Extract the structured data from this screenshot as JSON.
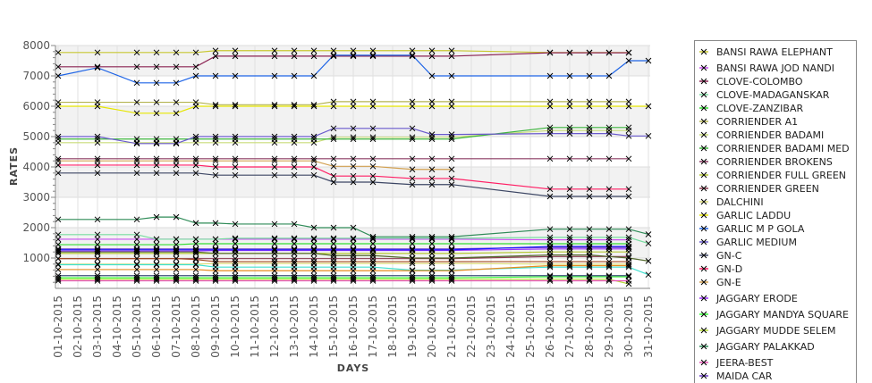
{
  "chart_data": {
    "type": "line",
    "title": "",
    "xlabel": "DAYS",
    "ylabel": "RATES",
    "ylim": [
      0,
      8000
    ],
    "yticks": [
      "1000",
      "2000",
      "3000",
      "4000",
      "5000",
      "6000",
      "7000",
      "8000"
    ],
    "xtick_labels": [
      "01-10-2015",
      "02-10-2015",
      "03-10-2015",
      "04-10-2015",
      "05-10-2015",
      "06-10-2015",
      "07-10-2015",
      "08-10-2015",
      "09-10-2015",
      "10-10-2015",
      "11-10-2015",
      "12-10-2015",
      "13-10-2015",
      "14-10-2015",
      "15-10-2015",
      "16-10-2015",
      "17-10-2015",
      "18-10-2015",
      "19-10-2015",
      "20-10-2015",
      "21-10-2015",
      "22-10-2015",
      "23-10-2015",
      "24-10-2015",
      "25-10-2015",
      "26-10-2015",
      "27-10-2015",
      "28-10-2015",
      "29-10-2015",
      "30-10-2015",
      "31-10-2015"
    ],
    "x": [
      "01-10-2015",
      "03-10-2015",
      "05-10-2015",
      "06-10-2015",
      "07-10-2015",
      "08-10-2015",
      "09-10-2015",
      "10-10-2015",
      "12-10-2015",
      "13-10-2015",
      "14-10-2015",
      "15-10-2015",
      "16-10-2015",
      "17-10-2015",
      "19-10-2015",
      "20-10-2015",
      "21-10-2015",
      "26-10-2015",
      "27-10-2015",
      "28-10-2015",
      "29-10-2015",
      "30-10-2015",
      "31-10-2015"
    ],
    "grid": true,
    "legend_position": "right",
    "series": [
      {
        "name": "BANSI RAWA ELEPHANT",
        "color": "#c8c832",
        "values": [
          7770,
          7770,
          7770,
          7770,
          7770,
          7770,
          7830,
          7830,
          7830,
          7830,
          7830,
          7830,
          7830,
          7830,
          7830,
          7830,
          7830,
          7770,
          7770,
          7770,
          7770,
          7770,
          null
        ]
      },
      {
        "name": "BANSI RAWA JOD NANDI",
        "color": "#c850f0",
        "values": [
          1620,
          1620,
          1620,
          1620,
          1620,
          1620,
          1620,
          1620,
          1620,
          1620,
          1620,
          1620,
          1620,
          1620,
          1620,
          1620,
          1620,
          1600,
          1600,
          1600,
          1600,
          1600,
          null
        ]
      },
      {
        "name": "CLOVE-COLOMBO",
        "color": "#8b2252",
        "values": [
          7300,
          7300,
          7300,
          7300,
          7300,
          7300,
          7650,
          7650,
          7650,
          7650,
          7650,
          7650,
          7650,
          7650,
          7650,
          7650,
          7650,
          7760,
          7760,
          7760,
          7760,
          7760,
          null
        ]
      },
      {
        "name": "CLOVE-MADAGANSKAR",
        "color": "#78dca0",
        "values": [
          1770,
          1770,
          1770,
          1620,
          1620,
          1620,
          1620,
          1650,
          1650,
          1650,
          1650,
          1650,
          1650,
          1650,
          1650,
          1650,
          1650,
          1680,
          1680,
          1680,
          1680,
          1680,
          1480
        ]
      },
      {
        "name": "CLOVE-ZANZIBAR",
        "color": "#32dc32",
        "values": [
          1440,
          1440,
          1440,
          1440,
          1440,
          1470,
          1470,
          1470,
          1470,
          1470,
          1470,
          1470,
          1470,
          1470,
          1470,
          1470,
          1470,
          1470,
          1470,
          1470,
          1470,
          1470,
          null
        ]
      },
      {
        "name": "CORRIENDER A1",
        "color": "#b4b450",
        "values": [
          6130,
          6130,
          6130,
          6130,
          6130,
          6130,
          6050,
          6050,
          6050,
          6050,
          6050,
          6150,
          6150,
          6150,
          6150,
          6150,
          6150,
          6150,
          6150,
          6150,
          6150,
          6150,
          null
        ]
      },
      {
        "name": "CORRIENDER BADAMI",
        "color": "#c8dc78",
        "values": [
          4800,
          4800,
          4800,
          4800,
          4800,
          4800,
          4800,
          4800,
          4800,
          4800,
          4800,
          4980,
          4980,
          4980,
          4980,
          4980,
          4980,
          5200,
          5200,
          5200,
          5200,
          5200,
          null
        ]
      },
      {
        "name": "CORRIENDER BADAMI MED",
        "color": "#3cb43c",
        "values": [
          4920,
          4920,
          4920,
          4920,
          4920,
          4920,
          4920,
          4920,
          4920,
          4920,
          4920,
          4920,
          4920,
          4920,
          4920,
          4920,
          4920,
          5300,
          5300,
          5300,
          5300,
          5300,
          null
        ]
      },
      {
        "name": "CORRIENDER BROKENS",
        "color": "#8b3a62",
        "values": [
          4270,
          4270,
          4270,
          4270,
          4270,
          4270,
          4270,
          4270,
          4270,
          4270,
          4270,
          4270,
          4270,
          4270,
          4270,
          4270,
          4270,
          4270,
          4270,
          4270,
          4270,
          4270,
          null
        ]
      },
      {
        "name": "CORRIENDER FULL GREEN",
        "color": "#b4c832",
        "values": [
          1150,
          1150,
          1150,
          1150,
          1150,
          1150,
          1150,
          1150,
          1150,
          1150,
          1150,
          1150,
          1150,
          1150,
          1150,
          1150,
          1150,
          1200,
          1200,
          1200,
          1200,
          1200,
          null
        ]
      },
      {
        "name": "CORRIENDER GREEN",
        "color": "#8b3a50",
        "values": [
          980,
          980,
          980,
          980,
          980,
          980,
          980,
          980,
          980,
          980,
          980,
          980,
          980,
          980,
          980,
          980,
          980,
          1050,
          1050,
          1050,
          1050,
          1050,
          null
        ]
      },
      {
        "name": "DALCHINI",
        "color": "#dcdc78",
        "values": [
          800,
          800,
          800,
          800,
          800,
          800,
          820,
          820,
          820,
          820,
          820,
          820,
          820,
          820,
          820,
          820,
          820,
          800,
          800,
          800,
          800,
          800,
          null
        ]
      },
      {
        "name": "GARLIC LADDU",
        "color": "#e6e600",
        "values": [
          6000,
          6000,
          5770,
          5770,
          5770,
          6000,
          6000,
          6000,
          6000,
          6000,
          6000,
          6000,
          6000,
          6000,
          6000,
          6000,
          6000,
          6000,
          6000,
          6000,
          6000,
          6000,
          6000
        ]
      },
      {
        "name": "GARLIC M P GOLA",
        "color": "#1e64e6",
        "values": [
          7000,
          7270,
          6770,
          6770,
          6770,
          7000,
          7000,
          7000,
          7000,
          7000,
          7000,
          7680,
          7680,
          7680,
          7680,
          7000,
          7000,
          7000,
          7000,
          7000,
          7000,
          7500,
          7500
        ]
      },
      {
        "name": "GARLIC MEDIUM",
        "color": "#6a5acd",
        "values": [
          5000,
          5000,
          4770,
          4770,
          4770,
          5000,
          5000,
          5000,
          5000,
          5000,
          5000,
          5270,
          5270,
          5270,
          5270,
          5070,
          5070,
          5100,
          5100,
          5100,
          5100,
          5020,
          5020
        ]
      },
      {
        "name": "GN-C",
        "color": "#3c4664",
        "values": [
          3800,
          3800,
          3800,
          3800,
          3800,
          3800,
          3730,
          3730,
          3730,
          3730,
          3730,
          3500,
          3500,
          3500,
          3420,
          3420,
          3420,
          3030,
          3030,
          3030,
          3030,
          3030,
          null
        ]
      },
      {
        "name": "GN-D",
        "color": "#ff1e64",
        "values": [
          4060,
          4060,
          4060,
          4060,
          4060,
          4060,
          4000,
          4000,
          4000,
          4000,
          4000,
          3700,
          3700,
          3700,
          3620,
          3620,
          3620,
          3270,
          3270,
          3270,
          3270,
          3270,
          null
        ]
      },
      {
        "name": "GN-E",
        "color": "#d2a050",
        "values": [
          4200,
          4200,
          4200,
          4200,
          4200,
          4200,
          4200,
          4200,
          4200,
          4200,
          4200,
          4020,
          4020,
          4020,
          3920,
          3920,
          3920,
          null,
          null,
          null,
          null,
          null,
          null
        ]
      },
      {
        "name": "JAGGARY ERODE",
        "color": "#9b30ff",
        "values": [
          1230,
          1230,
          1230,
          1230,
          1230,
          1230,
          1250,
          1250,
          1250,
          1250,
          1250,
          1250,
          1250,
          1250,
          1250,
          1250,
          1250,
          1300,
          1300,
          1300,
          1300,
          1300,
          null
        ]
      },
      {
        "name": "JAGGARY MANDYA SQUARE",
        "color": "#32ff32",
        "values": [
          350,
          350,
          350,
          350,
          350,
          350,
          350,
          350,
          350,
          350,
          350,
          350,
          350,
          350,
          350,
          350,
          350,
          380,
          380,
          380,
          380,
          380,
          null
        ]
      },
      {
        "name": "JAGGARY MUDDE SELEM",
        "color": "#b4dc32",
        "values": [
          300,
          300,
          300,
          300,
          300,
          300,
          300,
          300,
          300,
          300,
          300,
          300,
          300,
          300,
          300,
          300,
          300,
          300,
          300,
          300,
          300,
          150,
          null
        ]
      },
      {
        "name": "JAGGARY PALAKKAD",
        "color": "#2e8b57",
        "values": [
          2270,
          2270,
          2270,
          2350,
          2350,
          2150,
          2150,
          2120,
          2120,
          2120,
          2000,
          2000,
          2000,
          1700,
          1700,
          1700,
          1700,
          1950,
          1950,
          1950,
          1950,
          1950,
          1780
        ]
      },
      {
        "name": "JEERA-BEST",
        "color": "#e650b4",
        "values": [
          250,
          250,
          250,
          250,
          250,
          250,
          250,
          250,
          250,
          250,
          250,
          250,
          250,
          250,
          250,
          250,
          250,
          250,
          250,
          250,
          250,
          250,
          null
        ]
      },
      {
        "name": "MAIDA CAR",
        "color": "#6a3cc8",
        "values": [
          1300,
          1300,
          1300,
          1300,
          1300,
          1300,
          1300,
          1300,
          1300,
          1300,
          1300,
          1300,
          1300,
          1300,
          1300,
          1300,
          1300,
          1350,
          1350,
          1350,
          1350,
          1350,
          null
        ]
      },
      {
        "name": "",
        "color": "#40e0d0",
        "values": [
          780,
          780,
          780,
          780,
          780,
          780,
          700,
          700,
          700,
          700,
          700,
          700,
          700,
          700,
          600,
          600,
          600,
          700,
          700,
          700,
          700,
          700,
          450
        ]
      },
      {
        "name": "",
        "color": "#e68c1e",
        "values": [
          620,
          620,
          620,
          620,
          620,
          620,
          580,
          580,
          580,
          580,
          580,
          580,
          580,
          580,
          580,
          580,
          580,
          750,
          750,
          750,
          750,
          750,
          null
        ]
      },
      {
        "name": "",
        "color": "#556b2f",
        "values": [
          1200,
          1200,
          1200,
          1200,
          1200,
          1200,
          1150,
          1150,
          1150,
          1150,
          1150,
          1080,
          1080,
          1080,
          1000,
          1000,
          1000,
          1100,
          1100,
          1100,
          1050,
          1000,
          900
        ]
      },
      {
        "name": "",
        "color": "#a0461e",
        "values": [
          980,
          980,
          980,
          980,
          980,
          950,
          880,
          880,
          880,
          880,
          880,
          880,
          880,
          880,
          880,
          880,
          880,
          880,
          880,
          880,
          880,
          880,
          null
        ]
      },
      {
        "name": "",
        "color": "#3c5078",
        "values": [
          420,
          420,
          420,
          420,
          420,
          420,
          420,
          420,
          420,
          420,
          420,
          420,
          420,
          420,
          420,
          420,
          420,
          420,
          420,
          420,
          420,
          420,
          null
        ]
      },
      {
        "name": "",
        "color": "#1a1aff",
        "values": [
          1270,
          1270,
          1270,
          1270,
          1270,
          1270,
          1270,
          1270,
          1270,
          1270,
          1270,
          1270,
          1270,
          1270,
          1270,
          1270,
          1270,
          1380,
          1380,
          1380,
          1380,
          1380,
          null
        ]
      }
    ]
  }
}
